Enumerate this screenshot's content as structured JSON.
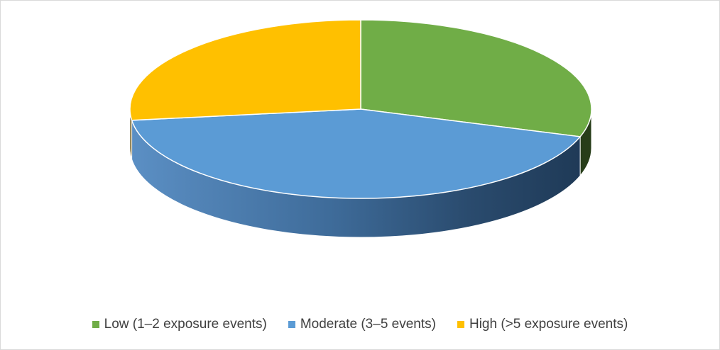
{
  "chart_data": {
    "type": "pie",
    "title": "",
    "categories": [
      "Low (1–2 exposure events)",
      "Moderate (3–5 events)",
      "High (>5 exposure events)"
    ],
    "values": [
      30,
      43,
      27
    ],
    "value_unit": "percent (estimated)",
    "colors": [
      "#70ad47",
      "#5b9bd5",
      "#ffc000"
    ],
    "style": "3d",
    "legend_position": "bottom",
    "start_angle_deg": 0,
    "direction": "clockwise"
  }
}
